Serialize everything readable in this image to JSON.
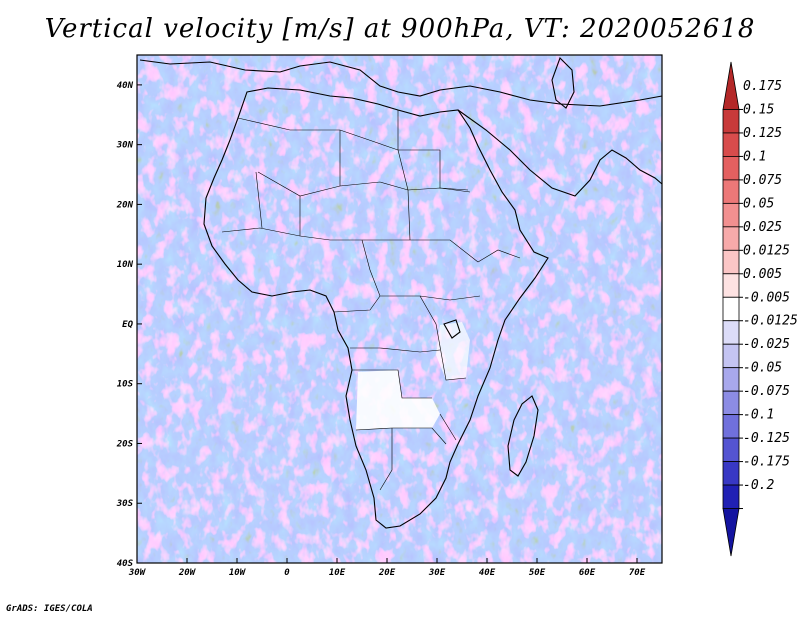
{
  "title": "Vertical velocity [m/s] at 900hPa, VT: 2020052618",
  "credit": "GrADS: IGES/COLA",
  "map": {
    "lat_labels": [
      "40N",
      "30N",
      "20N",
      "10N",
      "EQ",
      "10S",
      "20S",
      "30S",
      "40S"
    ],
    "lon_labels": [
      "30W",
      "20W",
      "10W",
      "0",
      "10E",
      "20E",
      "30E",
      "40E",
      "50E",
      "60E",
      "70E"
    ],
    "lat_range": [
      -40,
      45
    ],
    "lon_range": [
      -30,
      75
    ]
  },
  "colorbar": {
    "levels": [
      "0.175",
      "0.15",
      "0.125",
      "0.1",
      "0.075",
      "0.05",
      "0.025",
      "0.0125",
      "0.005",
      "-0.005",
      "-0.0125",
      "-0.025",
      "-0.05",
      "-0.075",
      "-0.1",
      "-0.125",
      "-0.175",
      "-0.2"
    ],
    "colors": [
      "#b42828",
      "#c83a3a",
      "#d84c4c",
      "#e46060",
      "#ec7878",
      "#f29090",
      "#f7aaaa",
      "#fbc6c6",
      "#fde2e2",
      "#ffffff",
      "#dcdcf8",
      "#c4c4f2",
      "#a8a8ec",
      "#8c8ce4",
      "#7070dc",
      "#5454d2",
      "#3838c4",
      "#2020b4",
      "#1414a0"
    ]
  }
}
